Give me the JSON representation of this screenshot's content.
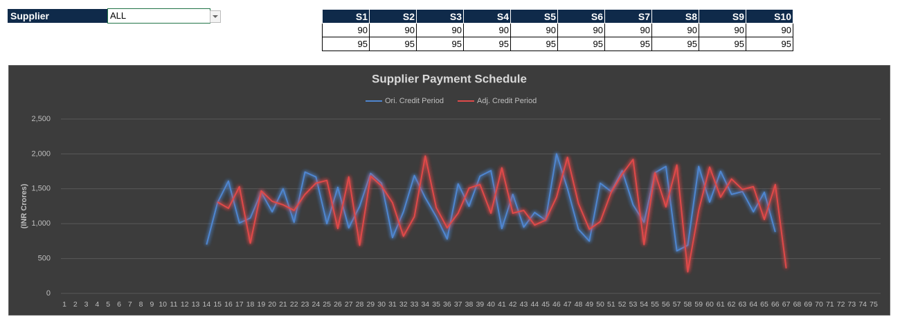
{
  "supplier": {
    "label": "Supplier",
    "selected": "ALL"
  },
  "table": {
    "header": [
      "S1",
      "S2",
      "S3",
      "S4",
      "S5",
      "S6",
      "S7",
      "S8",
      "S9",
      "S10"
    ],
    "rows": [
      [
        90,
        90,
        90,
        90,
        90,
        90,
        90,
        90,
        90,
        90
      ],
      [
        95,
        95,
        95,
        95,
        95,
        95,
        95,
        95,
        95,
        95
      ]
    ]
  },
  "chart_data": {
    "type": "line",
    "title": "Supplier Payment Schedule",
    "y_label": "(INR Crores)",
    "categories": [
      1,
      2,
      3,
      4,
      5,
      6,
      7,
      8,
      9,
      10,
      11,
      12,
      13,
      14,
      15,
      16,
      17,
      18,
      19,
      20,
      21,
      22,
      23,
      24,
      25,
      26,
      27,
      28,
      29,
      30,
      31,
      32,
      33,
      34,
      35,
      36,
      37,
      38,
      39,
      40,
      41,
      42,
      43,
      44,
      45,
      46,
      47,
      48,
      49,
      50,
      51,
      52,
      53,
      54,
      55,
      56,
      57,
      58,
      59,
      60,
      61,
      62,
      63,
      64,
      65,
      66,
      67,
      68,
      69,
      70,
      71,
      72,
      73,
      74,
      75
    ],
    "ylim": [
      0,
      2500
    ],
    "yticks": [
      0,
      500,
      {
        "value": 1000,
        "label": "1,000"
      },
      {
        "value": 1500,
        "label": "1,500"
      },
      {
        "value": 2000,
        "label": "2,000"
      },
      {
        "value": 2500,
        "label": "2,500"
      }
    ],
    "grid": true,
    "legend": "top",
    "series": [
      {
        "name": "Ori. Credit Period",
        "color": "#4f86d0",
        "values": [
          null,
          null,
          null,
          null,
          null,
          null,
          null,
          null,
          null,
          null,
          null,
          null,
          null,
          700,
          1300,
          1610,
          1010,
          1080,
          1450,
          1170,
          1500,
          1020,
          1740,
          1670,
          1000,
          1520,
          940,
          1250,
          1720,
          1580,
          800,
          1170,
          1690,
          1370,
          1100,
          780,
          1570,
          1250,
          1680,
          1760,
          930,
          1420,
          950,
          1160,
          1050,
          2000,
          1500,
          920,
          750,
          1580,
          1460,
          1760,
          1270,
          1020,
          1730,
          1820,
          610,
          690,
          1820,
          1310,
          1750,
          1420,
          1460,
          1170,
          1450,
          880,
          null,
          null,
          null,
          null,
          null,
          null,
          null,
          null,
          null
        ]
      },
      {
        "name": "Adj. Credit Period",
        "color": "#e04a4a",
        "values": [
          null,
          null,
          null,
          null,
          null,
          null,
          null,
          null,
          null,
          null,
          null,
          null,
          null,
          null,
          1310,
          1220,
          1530,
          720,
          1470,
          1320,
          1270,
          1190,
          1420,
          1580,
          1620,
          930,
          1670,
          690,
          1680,
          1540,
          1300,
          820,
          1100,
          1970,
          1230,
          940,
          1150,
          1510,
          1560,
          1150,
          1800,
          1150,
          1190,
          980,
          1050,
          1380,
          1950,
          1290,
          920,
          1030,
          1450,
          1710,
          1920,
          700,
          1730,
          1240,
          1840,
          310,
          1190,
          1810,
          1380,
          1640,
          1490,
          1530,
          1060,
          1560,
          360,
          null,
          null,
          null,
          null,
          null,
          null,
          null,
          null
        ]
      }
    ]
  }
}
